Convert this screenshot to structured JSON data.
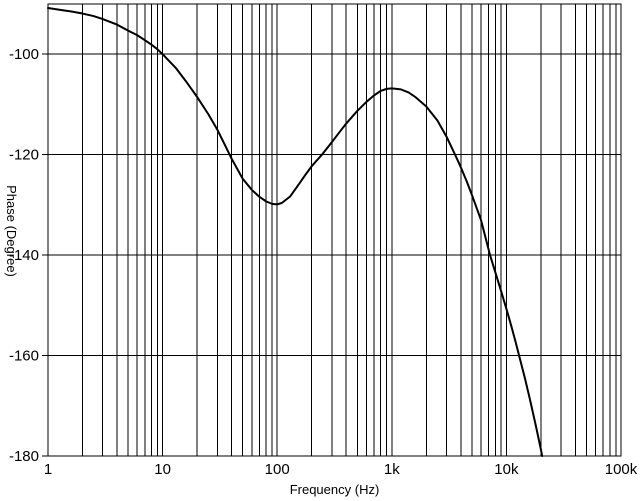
{
  "figure": {
    "kind": "bode-phase-plot",
    "background_color": "#ffffff"
  },
  "colors": {
    "curve": "#000000",
    "grid": "#000000",
    "text": "#000000",
    "background": "#ffffff"
  },
  "chart_data": {
    "type": "line",
    "title": "",
    "xlabel": "Frequency (Hz)",
    "ylabel": "Phase (Degree)",
    "x_scale": "log",
    "y_scale": "linear",
    "xlim": [
      1,
      100000
    ],
    "ylim": [
      -180,
      -90
    ],
    "grid": "on",
    "grid_style": "full-height log minor verticals; horizontal majors every 20 degrees",
    "legend": "none",
    "x_tick_values": [
      1,
      10,
      100,
      1000,
      10000,
      100000
    ],
    "x_tick_labels": [
      "1",
      "10",
      "100",
      "1k",
      "10k",
      "100k"
    ],
    "x_minor_ticks_per_decade": [
      2,
      3,
      4,
      5,
      6,
      7,
      8,
      9
    ],
    "y_tick_values": [
      -100,
      -120,
      -140,
      -160,
      -180
    ],
    "y_tick_labels": [
      "-100",
      "-120",
      "-140",
      "-160",
      "-180"
    ],
    "series": [
      {
        "name": "Phase",
        "color": "#000000",
        "points": [
          [
            1,
            -90.8
          ],
          [
            1.3,
            -91.2
          ],
          [
            1.6,
            -91.5
          ],
          [
            2,
            -91.9
          ],
          [
            2.5,
            -92.4
          ],
          [
            3,
            -93.0
          ],
          [
            4,
            -94.1
          ],
          [
            5,
            -95.3
          ],
          [
            6,
            -96.2
          ],
          [
            7,
            -97.2
          ],
          [
            8,
            -98.1
          ],
          [
            9,
            -99.0
          ],
          [
            10,
            -100.0
          ],
          [
            13,
            -102.7
          ],
          [
            16,
            -105.4
          ],
          [
            20,
            -108.5
          ],
          [
            25,
            -111.9
          ],
          [
            30,
            -115.0
          ],
          [
            35,
            -118.1
          ],
          [
            40,
            -120.8
          ],
          [
            50,
            -124.8
          ],
          [
            60,
            -127.0
          ],
          [
            70,
            -128.4
          ],
          [
            80,
            -129.3
          ],
          [
            90,
            -129.8
          ],
          [
            100,
            -129.9
          ],
          [
            110,
            -129.6
          ],
          [
            130,
            -128.3
          ],
          [
            150,
            -126.3
          ],
          [
            175,
            -124.1
          ],
          [
            200,
            -122.3
          ],
          [
            250,
            -119.8
          ],
          [
            300,
            -117.5
          ],
          [
            350,
            -115.5
          ],
          [
            400,
            -113.8
          ],
          [
            500,
            -111.3
          ],
          [
            600,
            -109.5
          ],
          [
            700,
            -108.2
          ],
          [
            800,
            -107.3
          ],
          [
            900,
            -106.9
          ],
          [
            1000,
            -106.8
          ],
          [
            1200,
            -107.0
          ],
          [
            1400,
            -107.6
          ],
          [
            1600,
            -108.5
          ],
          [
            2000,
            -110.4
          ],
          [
            2500,
            -113.2
          ],
          [
            3000,
            -116.4
          ],
          [
            3600,
            -120.2
          ],
          [
            4000,
            -122.5
          ],
          [
            4500,
            -125.3
          ],
          [
            5000,
            -128.0
          ],
          [
            6000,
            -133.0
          ],
          [
            7200,
            -140.0
          ],
          [
            8000,
            -143.4
          ],
          [
            9000,
            -147.2
          ],
          [
            10000,
            -150.7
          ],
          [
            11000,
            -154.0
          ],
          [
            12000,
            -157.2
          ],
          [
            13000,
            -160.3
          ],
          [
            14500,
            -164.5
          ],
          [
            16000,
            -168.6
          ],
          [
            18000,
            -173.8
          ],
          [
            20000,
            -178.7
          ],
          [
            20500,
            -180.0
          ]
        ]
      }
    ],
    "annotations": {
      "start_value_deg": -91,
      "local_min": {
        "frequency_hz": 95,
        "phase_deg": -130
      },
      "local_max": {
        "frequency_hz": 1000,
        "phase_deg": -107
      },
      "reaches_minus_180_at_hz": 20500
    }
  }
}
